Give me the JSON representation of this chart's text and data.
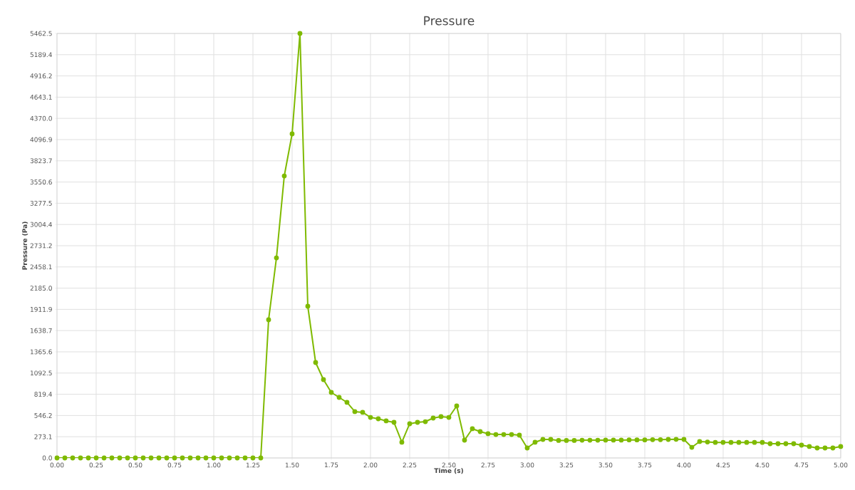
{
  "chart_data": {
    "type": "line",
    "title": "Pressure",
    "xlabel": "Time (s)",
    "ylabel": "Pressure (Pa)",
    "color": "#7fba00",
    "marker": "circle",
    "line_style": "solid",
    "grid": true,
    "x": [
      0,
      0.05,
      0.1,
      0.15,
      0.2,
      0.25,
      0.3,
      0.35,
      0.4,
      0.45,
      0.5,
      0.55,
      0.6,
      0.65,
      0.7,
      0.75,
      0.8,
      0.85,
      0.9,
      0.95,
      1.0,
      1.05,
      1.1,
      1.15,
      1.2,
      1.25,
      1.3,
      1.35,
      1.4,
      1.45,
      1.5,
      1.55,
      1.6,
      1.65,
      1.7,
      1.75,
      1.8,
      1.85,
      1.9,
      1.95,
      2.0,
      2.05,
      2.1,
      2.15,
      2.2,
      2.25,
      2.3,
      2.35,
      2.4,
      2.45,
      2.5,
      2.55,
      2.6,
      2.65,
      2.7,
      2.75,
      2.8,
      2.85,
      2.9,
      2.95,
      3.0,
      3.05,
      3.1,
      3.15,
      3.2,
      3.25,
      3.3,
      3.35,
      3.4,
      3.45,
      3.5,
      3.55,
      3.6,
      3.65,
      3.7,
      3.75,
      3.8,
      3.85,
      3.9,
      3.95,
      4.0,
      4.05,
      4.1,
      4.15,
      4.2,
      4.25,
      4.3,
      4.35,
      4.4,
      4.45,
      4.5,
      4.55,
      4.6,
      4.65,
      4.7,
      4.75,
      4.8,
      4.85,
      4.9,
      4.95,
      5.0
    ],
    "values": [
      0,
      0,
      0,
      0,
      0,
      0,
      0,
      0,
      0,
      0,
      0,
      0,
      0,
      0,
      0,
      0,
      0,
      0,
      0,
      0,
      0,
      0,
      0,
      0,
      0,
      0,
      0,
      1778,
      2575,
      3629,
      4170,
      5462.5,
      1952,
      1228,
      1008,
      843,
      779,
      715,
      596,
      587,
      522,
      504,
      477,
      458,
      202,
      440,
      458,
      467,
      513,
      532,
      522,
      669,
      229,
      376,
      339,
      312,
      302,
      302,
      302,
      293,
      128,
      202,
      238,
      238,
      225,
      225,
      225,
      228,
      228,
      228,
      230,
      230,
      230,
      232,
      232,
      232,
      235,
      235,
      238,
      240,
      238,
      137,
      211,
      205,
      200,
      200,
      200,
      200,
      200,
      200,
      200,
      183,
      183,
      183,
      183,
      165,
      147,
      128,
      128,
      128,
      147
    ],
    "xlim": [
      0,
      5
    ],
    "xticks": [
      {
        "value": 0,
        "label": "0.00"
      },
      {
        "value": 0.25,
        "label": "0.25"
      },
      {
        "value": 0.5,
        "label": "0.50"
      },
      {
        "value": 0.75,
        "label": "0.75"
      },
      {
        "value": 1,
        "label": "1.00"
      },
      {
        "value": 1.25,
        "label": "1.25"
      },
      {
        "value": 1.5,
        "label": "1.50"
      },
      {
        "value": 1.75,
        "label": "1.75"
      },
      {
        "value": 2,
        "label": "2.00"
      },
      {
        "value": 2.25,
        "label": "2.25"
      },
      {
        "value": 2.5,
        "label": "2.50"
      },
      {
        "value": 2.75,
        "label": "2.75"
      },
      {
        "value": 3,
        "label": "3.00"
      },
      {
        "value": 3.25,
        "label": "3.25"
      },
      {
        "value": 3.5,
        "label": "3.50"
      },
      {
        "value": 3.75,
        "label": "3.75"
      },
      {
        "value": 4,
        "label": "4.00"
      },
      {
        "value": 4.25,
        "label": "4.25"
      },
      {
        "value": 4.5,
        "label": "4.50"
      },
      {
        "value": 4.75,
        "label": "4.75"
      },
      {
        "value": 5,
        "label": "5.00"
      }
    ],
    "ylim": [
      0,
      5462.5
    ],
    "yticks": [
      {
        "value": 0,
        "label": "0.0"
      },
      {
        "value": 273.1,
        "label": "273.1"
      },
      {
        "value": 546.2,
        "label": "546.2"
      },
      {
        "value": 819.4,
        "label": "819.4"
      },
      {
        "value": 1092.5,
        "label": "1092.5"
      },
      {
        "value": 1365.6,
        "label": "1365.6"
      },
      {
        "value": 1638.7,
        "label": "1638.7"
      },
      {
        "value": 1911.9,
        "label": "1911.9"
      },
      {
        "value": 2185.0,
        "label": "2185.0"
      },
      {
        "value": 2458.1,
        "label": "2458.1"
      },
      {
        "value": 2731.2,
        "label": "2731.2"
      },
      {
        "value": 3004.4,
        "label": "3004.4"
      },
      {
        "value": 3277.5,
        "label": "3277.5"
      },
      {
        "value": 3550.6,
        "label": "3550.6"
      },
      {
        "value": 3823.7,
        "label": "3823.7"
      },
      {
        "value": 4096.9,
        "label": "4096.9"
      },
      {
        "value": 4370.0,
        "label": "4370.0"
      },
      {
        "value": 4643.1,
        "label": "4643.1"
      },
      {
        "value": 4916.2,
        "label": "4916.2"
      },
      {
        "value": 5189.4,
        "label": "5189.4"
      },
      {
        "value": 5462.5,
        "label": "5462.5"
      }
    ]
  }
}
